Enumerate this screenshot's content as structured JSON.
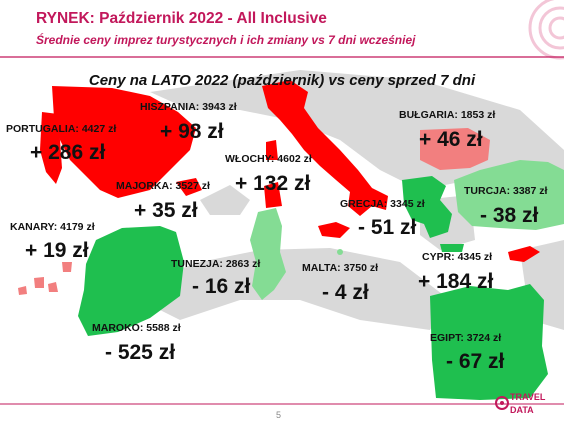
{
  "header": {
    "title": "RYNEK: Październik 2022 - All Inclusive",
    "subtitle": "Średnie ceny imprez turystycznych i ich zmiany vs 7 dni wcześniej"
  },
  "headline": "Ceny na LATO 2022 (październik) vs ceny sprzed 7 dni",
  "destinations": [
    {
      "id": "portugalia",
      "label": "PORTUGALIA: 4427 zł",
      "change": "+ 286 zł",
      "trend": "up"
    },
    {
      "id": "hiszpania",
      "label": "HISZPANIA: 3943 zł",
      "change": "+ 98 zł",
      "trend": "up"
    },
    {
      "id": "wlochy",
      "label": "WŁOCHY: 4602 zł",
      "change": "+ 132 zł",
      "trend": "up"
    },
    {
      "id": "majorka",
      "label": "MAJORKA: 3527 zł",
      "change": "+ 35 zł",
      "trend": "up"
    },
    {
      "id": "kanary",
      "label": "KANARY: 4179 zł",
      "change": "+ 19 zł",
      "trend": "up"
    },
    {
      "id": "bulgaria",
      "label": "BUŁGARIA: 1853 zł",
      "change": "+ 46 zł",
      "trend": "up"
    },
    {
      "id": "turcja",
      "label": "TURCJA: 3387 zł",
      "change": "- 38 zł",
      "trend": "down"
    },
    {
      "id": "grecja",
      "label": "GRECJA: 3345 zł",
      "change": "- 51 zł",
      "trend": "down"
    },
    {
      "id": "tunezja",
      "label": "TUNEZJA: 2863 zł",
      "change": "- 16 zł",
      "trend": "down"
    },
    {
      "id": "malta",
      "label": "MALTA: 3750 zł",
      "change": "- 4 zł",
      "trend": "down"
    },
    {
      "id": "cypr",
      "label": "CYPR: 4345 zł",
      "change": "+ 184 zł",
      "trend": "up"
    },
    {
      "id": "maroko",
      "label": "MAROKO: 5588 zł",
      "change": "- 525 zł",
      "trend": "down"
    },
    {
      "id": "egipt",
      "label": "EGIPT: 3724 zł",
      "change": "- 67 zł",
      "trend": "down"
    }
  ],
  "colors": {
    "accent": "#c2185b",
    "increase": "#ff0000",
    "decrease": "#1fbf4f",
    "light_increase": "#f27f7f",
    "light_decrease": "#84dc94",
    "land_neutral": "#d9d9d9"
  },
  "footer": {
    "page_number": "5",
    "logo_text": "TRAVEL DATA"
  }
}
